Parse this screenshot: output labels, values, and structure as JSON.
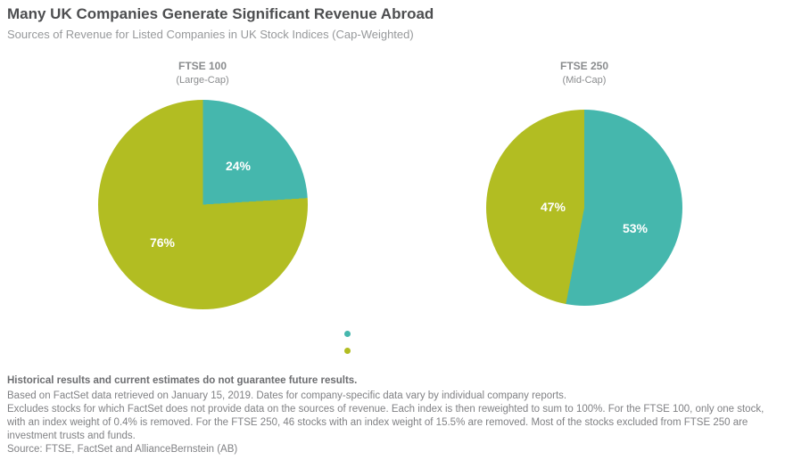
{
  "header": {
    "title": "Many UK Companies Generate Significant Revenue Abroad",
    "subtitle": "Sources of Revenue for Listed Companies in UK Stock Indices (Cap-Weighted)"
  },
  "colors": {
    "teal": "#45b7ad",
    "green": "#b2bd22"
  },
  "chart_data": [
    {
      "type": "pie",
      "title": "FTSE 100",
      "subtitle": "(Large-Cap)",
      "slices": [
        {
          "label": "24%",
          "value": 24,
          "color_key": "teal"
        },
        {
          "label": "76%",
          "value": 76,
          "color_key": "green"
        }
      ]
    },
    {
      "type": "pie",
      "title": "FTSE 250",
      "subtitle": "(Mid-Cap)",
      "slices": [
        {
          "label": "53%",
          "value": 53,
          "color_key": "teal"
        },
        {
          "label": "47%",
          "value": 47,
          "color_key": "green"
        }
      ]
    }
  ],
  "legend": {
    "markers": [
      {
        "color_key": "teal"
      },
      {
        "color_key": "green"
      }
    ]
  },
  "footer": {
    "disclaimer": "Historical results and current estimates do not guarantee future results.",
    "line1": "Based on FactSet data retrieved on January 15, 2019. Dates for company-specific data vary by individual company reports.",
    "line2": "Excludes stocks for which FactSet does not provide data on the sources of revenue. Each index is then reweighted to sum to 100%. For the FTSE 100, only one stock, with an index weight of 0.4% is removed. For the FTSE 250, 46 stocks with an index weight of 15.5% are removed. Most of the stocks excluded from FTSE 250 are investment trusts and funds.",
    "source": "Source: FTSE, FactSet and AllianceBernstein (AB)"
  }
}
